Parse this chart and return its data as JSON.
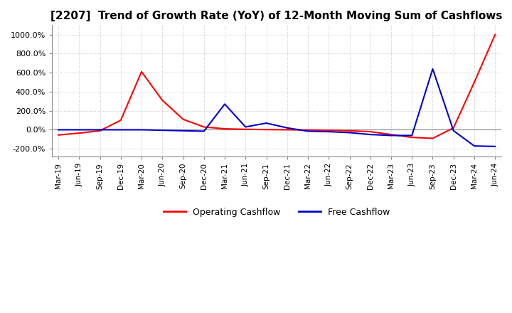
{
  "title": "[2207]  Trend of Growth Rate (YoY) of 12-Month Moving Sum of Cashflows",
  "title_fontsize": 11,
  "ylim": [
    -280,
    1100
  ],
  "yticks": [
    -200,
    0,
    200,
    400,
    600,
    800,
    1000
  ],
  "background_color": "#ffffff",
  "grid_color": "#aaaaaa",
  "x_labels": [
    "Mar-19",
    "Jun-19",
    "Sep-19",
    "Dec-19",
    "Mar-20",
    "Jun-20",
    "Sep-20",
    "Dec-20",
    "Mar-21",
    "Jun-21",
    "Sep-21",
    "Dec-21",
    "Mar-22",
    "Jun-22",
    "Sep-22",
    "Dec-22",
    "Mar-23",
    "Jun-23",
    "Sep-23",
    "Dec-23",
    "Mar-24",
    "Jun-24"
  ],
  "operating_cashflow": [
    -55,
    -35,
    -10,
    100,
    610,
    310,
    110,
    30,
    10,
    5,
    2,
    0,
    -2,
    -5,
    -10,
    -20,
    -50,
    -80,
    -90,
    20,
    500,
    1000
  ],
  "free_cashflow": [
    0,
    0,
    0,
    0,
    0,
    -5,
    -10,
    -15,
    270,
    30,
    70,
    20,
    -15,
    -20,
    -30,
    -50,
    -60,
    -60,
    640,
    -10,
    -170,
    -175
  ],
  "op_color": "#ff0000",
  "free_color": "#0000cc",
  "legend_labels": [
    "Operating Cashflow",
    "Free Cashflow"
  ]
}
